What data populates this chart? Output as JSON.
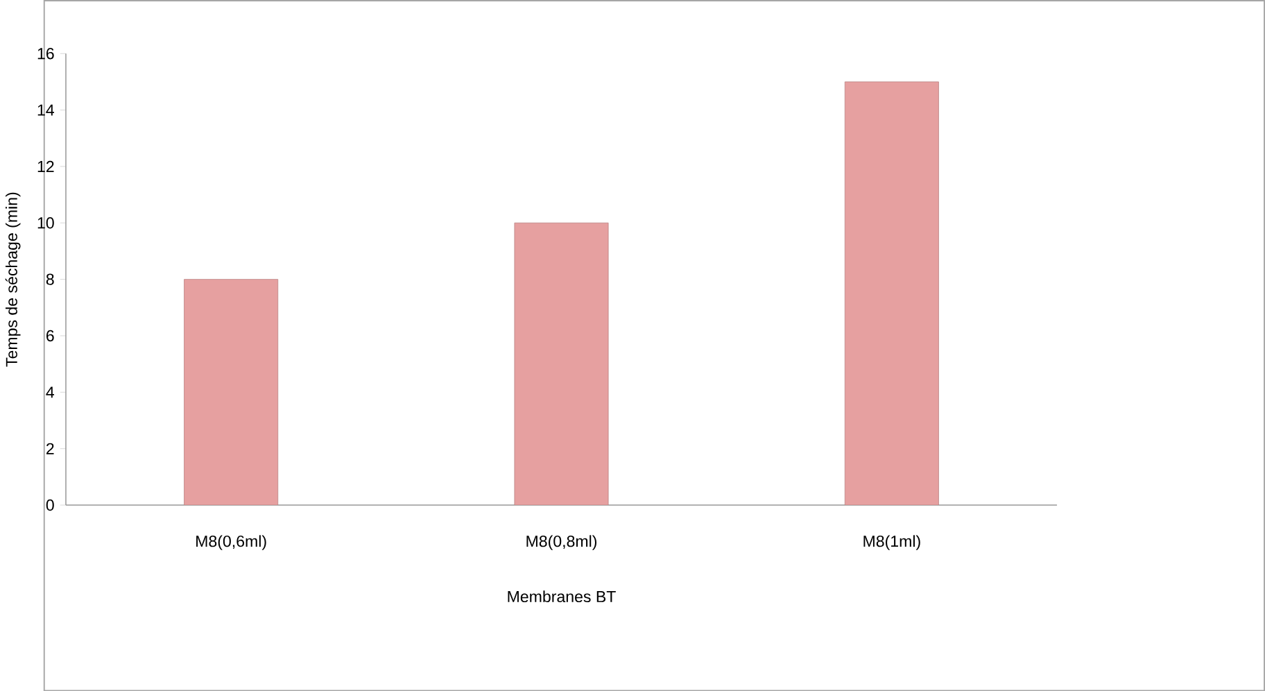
{
  "chart_data": {
    "type": "bar",
    "xlabel": "Membranes BT",
    "ylabel": "Temps de séchage (min)",
    "categories": [
      "M8(0,6ml)",
      "M8(0,8ml)",
      "M8(1ml)"
    ],
    "values": [
      8,
      10,
      15
    ],
    "color": "#e6a0a0",
    "ylim": [
      0,
      16
    ],
    "yticks": [
      0,
      2,
      4,
      6,
      8,
      10,
      12,
      14,
      16
    ]
  }
}
